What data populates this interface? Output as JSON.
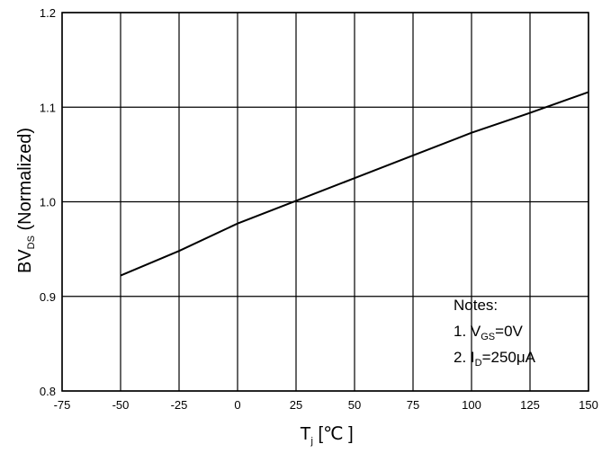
{
  "chart_data": {
    "type": "line",
    "title": "",
    "ylabel": {
      "main": "BV",
      "sub": "DS",
      "suffix": " (Normalized)"
    },
    "xlabel": {
      "main": "T",
      "sub": "j",
      "suffix": " [℃ ]"
    },
    "xlim": [
      -75,
      150
    ],
    "ylim": [
      0.8,
      1.2
    ],
    "x_ticks": [
      -75,
      -50,
      -25,
      0,
      25,
      50,
      75,
      100,
      125,
      150
    ],
    "x_tick_labels": [
      "-75",
      "-50",
      "-25",
      "0",
      "25",
      "50",
      "75",
      "100",
      "125",
      "150"
    ],
    "y_ticks": [
      0.8,
      0.9,
      1.0,
      1.1,
      1.2
    ],
    "y_tick_labels": [
      "0.8",
      "0.9",
      "1.0",
      "1.1",
      "1.2"
    ],
    "grid": true,
    "series": [
      {
        "x": [
          -50,
          -25,
          0,
          25,
          50,
          75,
          100,
          125,
          150
        ],
        "y": [
          0.922,
          0.948,
          0.977,
          1.001,
          1.025,
          1.049,
          1.073,
          1.094,
          1.116
        ]
      }
    ],
    "notes": {
      "title": "Notes:",
      "line1": {
        "prefix": "1. V",
        "sub": "GS",
        "suffix": "=0V"
      },
      "line2": {
        "prefix": "2. I",
        "sub": "D",
        "suffix": "=250μA"
      }
    }
  },
  "colors": {
    "line": "#000000",
    "grid": "#000000",
    "background": "#ffffff"
  }
}
